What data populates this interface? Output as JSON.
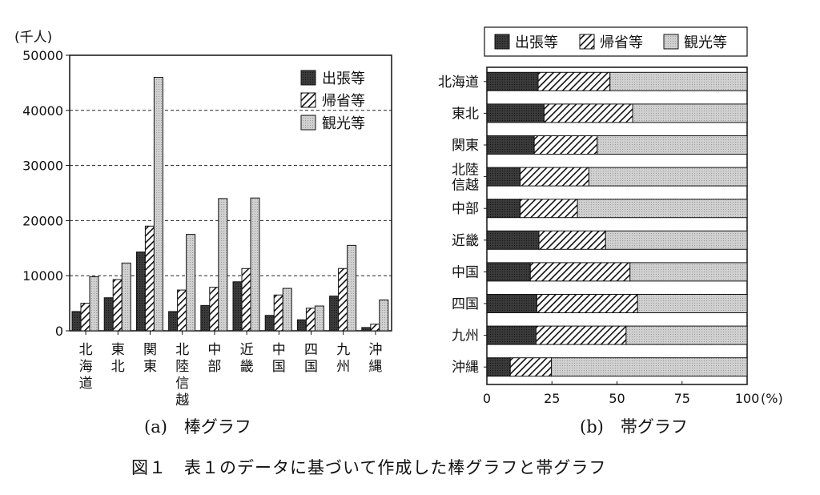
{
  "colors": {
    "business": "#333333",
    "homecoming": "#ffffff",
    "tourism": "#cccccc"
  },
  "chart_data": [
    {
      "type": "bar",
      "title": "(a)　棒グラフ",
      "ylabel": "(千人)",
      "ylim": [
        0,
        50000
      ],
      "yticks": [
        0,
        10000,
        20000,
        30000,
        40000,
        50000
      ],
      "grid": "dashed horizontal",
      "legend_position": "top-right",
      "categories": [
        "北海道",
        "東北",
        "関東",
        "北陸信越",
        "中部",
        "近畿",
        "中国",
        "四国",
        "九州",
        "沖縄"
      ],
      "series": [
        {
          "name": "出張等",
          "values": [
            3500,
            6000,
            14300,
            3500,
            4600,
            8900,
            2800,
            2000,
            6300,
            600
          ]
        },
        {
          "name": "帰省等",
          "values": [
            5000,
            9300,
            19000,
            7400,
            7900,
            11300,
            6500,
            4100,
            11300,
            1200
          ]
        },
        {
          "name": "観光等",
          "values": [
            9800,
            12300,
            46000,
            17500,
            24000,
            24100,
            7700,
            4500,
            15500,
            5600
          ]
        }
      ]
    },
    {
      "type": "stacked-bar-horizontal",
      "title": "(b)　帯グラフ",
      "xlabel": "(%)",
      "xlim": [
        0,
        100
      ],
      "xticks": [
        0,
        25,
        50,
        75,
        100
      ],
      "legend_position": "top",
      "categories": [
        "北海道",
        "東北",
        "関東",
        "北陸信越",
        "中部",
        "近畿",
        "中国",
        "四国",
        "九州",
        "沖縄"
      ],
      "series": [
        {
          "name": "出張等",
          "values": [
            19.7,
            22.0,
            18.2,
            12.8,
            12.8,
            20.0,
            16.7,
            19.2,
            18.9,
            9.0
          ]
        },
        {
          "name": "帰省等",
          "values": [
            27.6,
            34.0,
            24.2,
            26.4,
            22.0,
            25.6,
            38.3,
            38.7,
            34.6,
            15.8
          ]
        },
        {
          "name": "観光等",
          "values": [
            52.7,
            44.0,
            57.6,
            60.8,
            65.2,
            54.4,
            45.0,
            42.1,
            46.5,
            75.2
          ]
        }
      ]
    }
  ],
  "figure_caption": "図１　表１のデータに基づいて作成した棒グラフと帯グラフ"
}
